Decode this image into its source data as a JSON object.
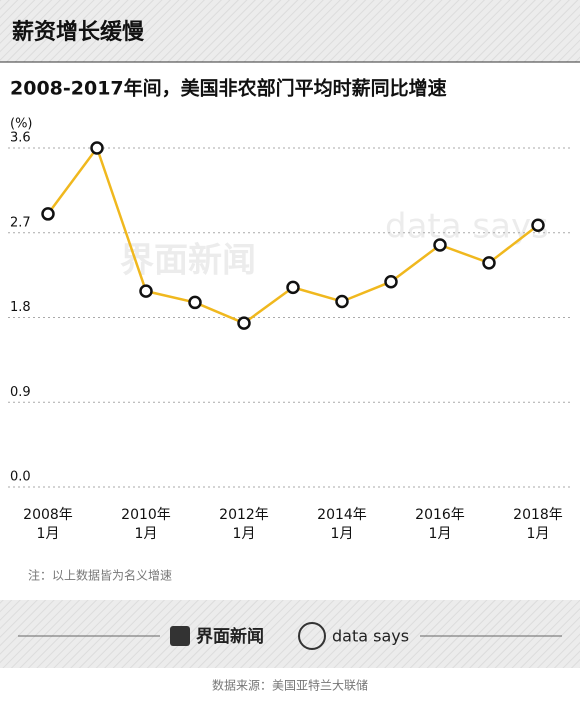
{
  "header": {
    "title": "薪资增长缓慢"
  },
  "chart_data": {
    "type": "line",
    "title": "2008-2017年间，美国非农部门平均时薪同比增速",
    "y_unit": "(%)",
    "categories": [
      [
        "2008年",
        "1月"
      ],
      null,
      [
        "2010年",
        "1月"
      ],
      null,
      [
        "2012年",
        "1月"
      ],
      null,
      [
        "2014年",
        "1月"
      ],
      null,
      [
        "2016年",
        "1月"
      ],
      null,
      [
        "2018年",
        "1月"
      ]
    ],
    "series": [
      {
        "name": "平均时薪同比增速",
        "color": "#f0b81e",
        "values": [
          2.9,
          3.6,
          2.08,
          1.96,
          1.74,
          2.12,
          1.97,
          2.18,
          2.57,
          2.38,
          2.78
        ]
      }
    ],
    "ylim": [
      0,
      3.6
    ],
    "yticks": [
      {
        "value": 0,
        "label": "0.0"
      },
      0.9,
      1.8,
      2.7,
      3.6
    ],
    "grid": true,
    "note": "注：以上数据皆为名义增速"
  },
  "footer": {
    "logo1": "界面新闻",
    "logo2": "data says",
    "source": "数据来源：美国亚特兰大联储"
  }
}
